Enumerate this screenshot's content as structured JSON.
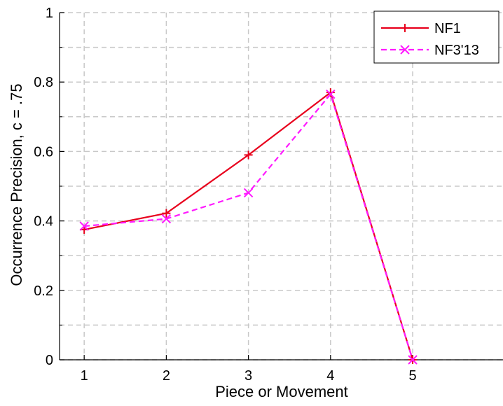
{
  "chart_data": {
    "type": "line",
    "xlabel": "Piece or Movement",
    "ylabel": "Occurrence Precision, c = .75",
    "x": [
      1,
      2,
      3,
      4,
      5
    ],
    "xlim": [
      0.7,
      6.1
    ],
    "ylim": [
      0,
      1
    ],
    "x_ticks": [
      "1",
      "2",
      "3",
      "4",
      "5"
    ],
    "y_ticks": [
      {
        "value": 0,
        "label": "0"
      },
      {
        "value": 0.2,
        "label": "0.2"
      },
      {
        "value": 0.4,
        "label": "0.4"
      },
      {
        "value": 0.6,
        "label": "0.6"
      },
      {
        "value": 0.8,
        "label": "0.8"
      },
      {
        "value": 1,
        "label": "1"
      }
    ],
    "y_minor_grid": [
      0.1,
      0.3,
      0.5,
      0.7,
      0.9
    ],
    "grid": true,
    "legend_position": "top-right",
    "series": [
      {
        "name": "NF1",
        "values": [
          0.375,
          0.422,
          0.59,
          0.77,
          0.0
        ],
        "color": "#e8001c",
        "line_style": "solid",
        "marker": "plus"
      },
      {
        "name": "NF3'13",
        "values": [
          0.385,
          0.406,
          0.481,
          0.765,
          0.0
        ],
        "color": "#ff1aff",
        "line_style": "dashed",
        "marker": "x"
      }
    ]
  }
}
